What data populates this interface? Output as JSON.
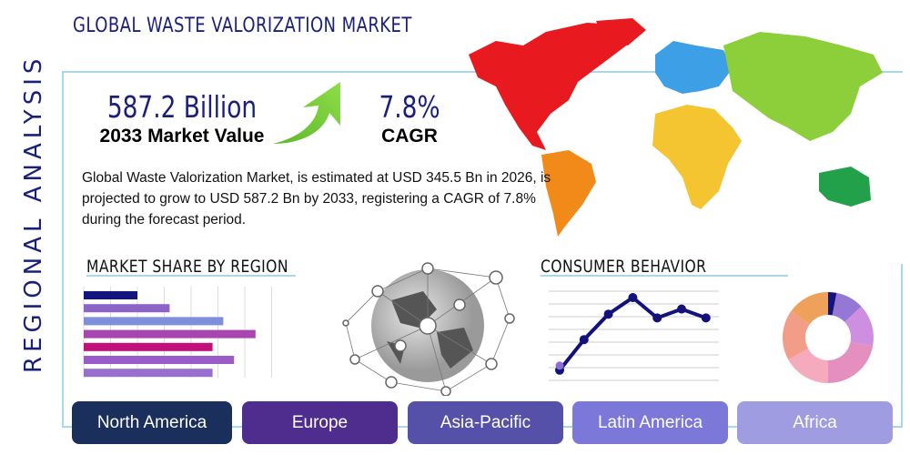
{
  "header": {
    "title": "GLOBAL WASTE VALORIZATION MARKET",
    "side_title": "REGIONAL ANALYSIS"
  },
  "stats": {
    "market_value": "587.2 Billion",
    "market_value_label": "2033 Market Value",
    "cagr": "7.8%",
    "cagr_label": "CAGR"
  },
  "description": "Global Waste Valorization Market, is estimated at USD 345.5 Bn in 2026, is projected to grow to USD 587.2 Bn by 2033, registering a CAGR of 7.8% during the forecast period.",
  "sections": {
    "market_share": "MARKET SHARE BY REGION",
    "consumer_behavior": "CONSUMER BEHAVIOR"
  },
  "regions": [
    {
      "label": "North America",
      "color": "#1b2f5c"
    },
    {
      "label": "Europe",
      "color": "#4f2d8f"
    },
    {
      "label": "Asia-Pacific",
      "color": "#5651a8"
    },
    {
      "label": "Latin America",
      "color": "#7b78d9"
    },
    {
      "label": "Africa",
      "color": "#a09ce2"
    }
  ],
  "chart_data": [
    {
      "type": "bar",
      "orientation": "horizontal",
      "values": [
        2.0,
        3.2,
        5.2,
        6.4,
        4.8,
        5.6,
        4.8
      ],
      "colors": [
        "#141480",
        "#8e63c9",
        "#7f8fdc",
        "#a845b0",
        "#c2107a",
        "#9a5cc9",
        "#9770cf"
      ],
      "xlim": [
        0,
        7
      ],
      "grid": true
    },
    {
      "type": "line",
      "values": [
        0.8,
        3.2,
        5.2,
        6.5,
        4.9,
        5.6,
        4.9
      ],
      "ylim": [
        0,
        7
      ],
      "color": "#12127a",
      "grid": true
    },
    {
      "type": "pie",
      "donut": true,
      "values": [
        3,
        10,
        15,
        22,
        17,
        18,
        15
      ],
      "colors": [
        "#14147a",
        "#9577d6",
        "#cf8fe0",
        "#e48fbf",
        "#f6aabd",
        "#f29d88",
        "#eda15a"
      ]
    }
  ]
}
